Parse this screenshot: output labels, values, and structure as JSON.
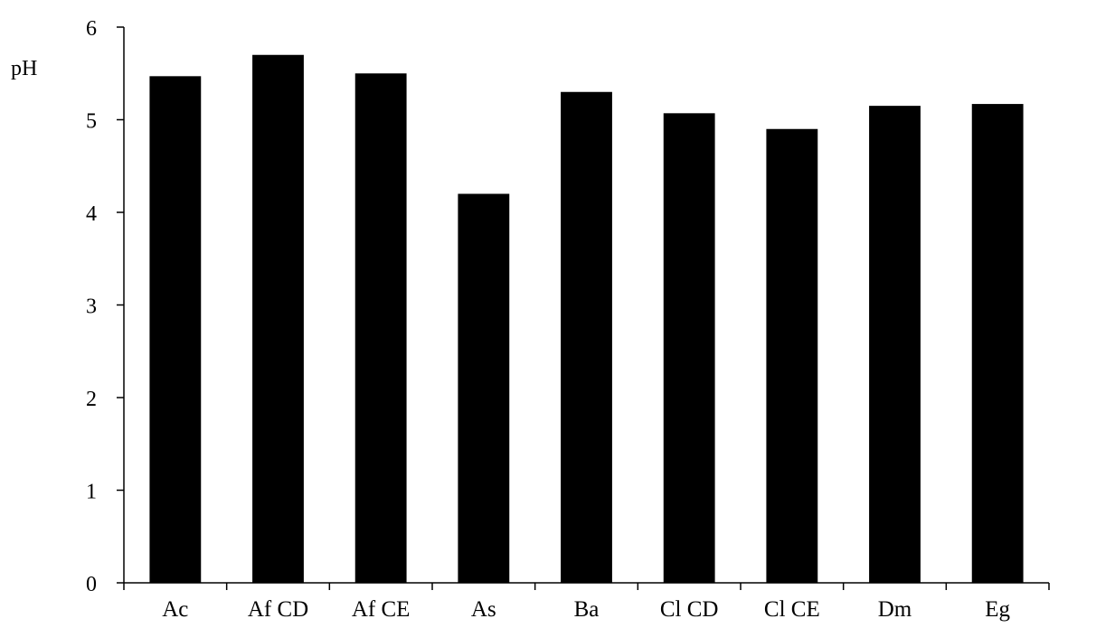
{
  "chart_data": {
    "type": "bar",
    "title": "",
    "xlabel": "",
    "ylabel": "pH",
    "categories": [
      "Ac",
      "Af CD",
      "Af CE",
      "As",
      "Ba",
      "Cl CD",
      "Cl CE",
      "Dm",
      "Eg"
    ],
    "values": [
      5.47,
      5.7,
      5.5,
      4.2,
      5.3,
      5.07,
      4.9,
      5.15,
      5.17
    ],
    "ylim": [
      0,
      6
    ],
    "yticks": [
      "0",
      "1",
      "2",
      "3",
      "4",
      "5",
      "6"
    ],
    "grid": false,
    "legend": "none",
    "bar_color": "#000000"
  }
}
